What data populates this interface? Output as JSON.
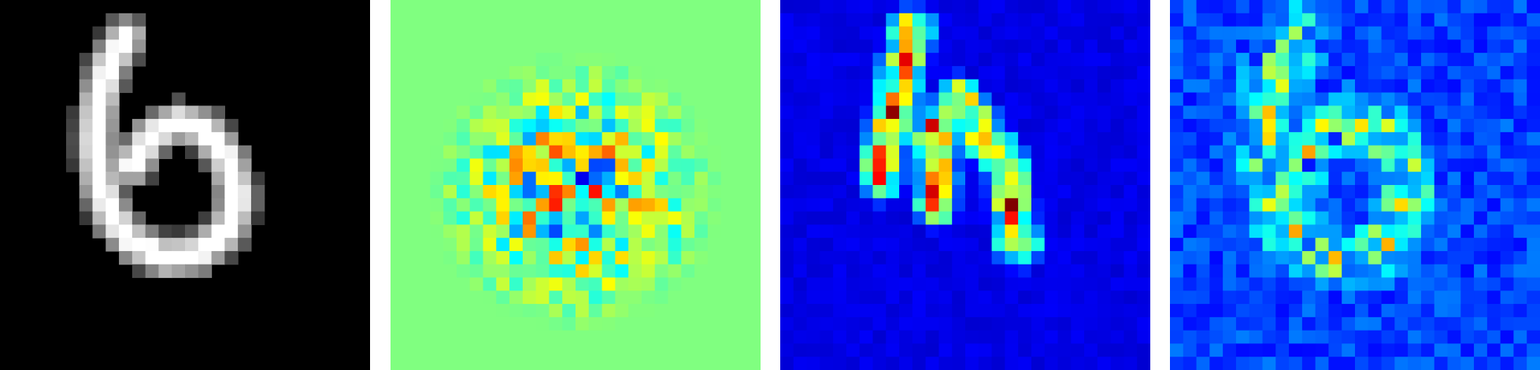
{
  "panels": [
    {
      "id": "input-digit",
      "colormap": "gray",
      "background": "#000000"
    },
    {
      "id": "attribution-map",
      "colormap": "jet",
      "background": "#7fff7f"
    },
    {
      "id": "saliency-map",
      "colormap": "jet",
      "background": "#000080"
    },
    {
      "id": "noise-map",
      "colormap": "jet",
      "background": "#00009a"
    }
  ],
  "colors": {
    "page_background": "#ffffff",
    "jet_low": "#00007f",
    "jet_mid": "#7fff7f",
    "jet_high": "#7f0000"
  }
}
